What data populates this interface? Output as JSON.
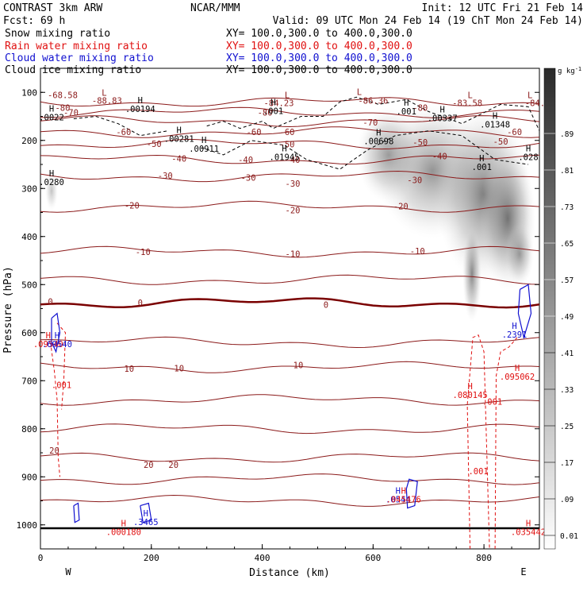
{
  "header": {
    "model": "CONTRAST  3km ARW",
    "center": "NCAR/MMM",
    "init": "Init: 12 UTC Fri 21 Feb 14",
    "fcst": "Fcst:   69 h",
    "valid": "Valid: 09 UTC Mon 24 Feb 14 (19 ChT Mon 24 Feb 14)"
  },
  "fields": [
    {
      "name": "Snow mixing ratio",
      "xy": "XY= 100.0,300.0 to 400.0,300.0",
      "color": "#000000"
    },
    {
      "name": "Rain water mixing ratio",
      "xy": "XY= 100.0,300.0 to 400.0,300.0",
      "color": "#e01010"
    },
    {
      "name": "Cloud water mixing ratio",
      "xy": "XY= 100.0,300.0 to 400.0,300.0",
      "color": "#1010d0"
    },
    {
      "name": "Cloud ice mixing ratio",
      "xy": "XY= 100.0,300.0 to 400.0,300.0",
      "color": "#000000"
    }
  ],
  "colors": {
    "temperature": "#8b1a1a",
    "freezing": "#7a0000",
    "rain": "#e01010",
    "cloud_water": "#1010d0",
    "ice": "#000000"
  },
  "chart_data": {
    "type": "contour",
    "xlabel": "Distance (km)",
    "ylabel": "Pressure (hPa)",
    "xlim": [
      0,
      900
    ],
    "ylim": [
      1050,
      50
    ],
    "xticks": [
      0,
      200,
      400,
      600,
      800
    ],
    "yticks": [
      100,
      200,
      300,
      400,
      500,
      600,
      700,
      800,
      900,
      1000
    ],
    "x_end_labels": [
      "W",
      "E"
    ],
    "colorbar": {
      "unit": "g kg",
      "unit_exp": "-1",
      "levels": [
        "0.01",
        ".09",
        ".17",
        ".25",
        ".33",
        ".41",
        ".49",
        ".57",
        ".65",
        ".73",
        ".81",
        ".89"
      ]
    },
    "temperature_labels": [
      {
        "x": 40,
        "p": 105,
        "text": "-68.58"
      },
      {
        "x": 120,
        "p": 117,
        "text": "-88.83"
      },
      {
        "x": 430,
        "p": 122,
        "text": "-84.23"
      },
      {
        "x": 600,
        "p": 117,
        "text": "-86.36"
      },
      {
        "x": 770,
        "p": 122,
        "text": "-83.58"
      },
      {
        "x": 892,
        "p": 122,
        "text": "-84."
      },
      {
        "x": 40,
        "p": 132,
        "text": "-80"
      },
      {
        "x": 405,
        "p": 142,
        "text": "-80"
      },
      {
        "x": 685,
        "p": 132,
        "text": "-80"
      },
      {
        "x": 55,
        "p": 142,
        "text": "-70"
      },
      {
        "x": 595,
        "p": 162,
        "text": "-70"
      },
      {
        "x": 150,
        "p": 182,
        "text": "-60"
      },
      {
        "x": 385,
        "p": 182,
        "text": "-60"
      },
      {
        "x": 445,
        "p": 182,
        "text": "-60"
      },
      {
        "x": 855,
        "p": 182,
        "text": "-60"
      },
      {
        "x": 205,
        "p": 207,
        "text": "-50"
      },
      {
        "x": 445,
        "p": 208,
        "text": "-50"
      },
      {
        "x": 685,
        "p": 204,
        "text": "-50"
      },
      {
        "x": 830,
        "p": 202,
        "text": "-50"
      },
      {
        "x": 250,
        "p": 238,
        "text": "-40"
      },
      {
        "x": 370,
        "p": 240,
        "text": "-40"
      },
      {
        "x": 455,
        "p": 240,
        "text": "-40"
      },
      {
        "x": 720,
        "p": 233,
        "text": "-40"
      },
      {
        "x": 225,
        "p": 273,
        "text": "-30"
      },
      {
        "x": 375,
        "p": 277,
        "text": "-30"
      },
      {
        "x": 455,
        "p": 290,
        "text": "-30"
      },
      {
        "x": 675,
        "p": 282,
        "text": "-30"
      },
      {
        "x": 165,
        "p": 335,
        "text": "-20"
      },
      {
        "x": 455,
        "p": 345,
        "text": "-20"
      },
      {
        "x": 650,
        "p": 337,
        "text": "-20"
      },
      {
        "x": 185,
        "p": 432,
        "text": "-10"
      },
      {
        "x": 455,
        "p": 436,
        "text": "-10"
      },
      {
        "x": 680,
        "p": 430,
        "text": "-10"
      },
      {
        "x": 18,
        "p": 535,
        "text": "0"
      },
      {
        "x": 180,
        "p": 538,
        "text": "0"
      },
      {
        "x": 515,
        "p": 542,
        "text": "0"
      },
      {
        "x": 160,
        "p": 675,
        "text": "10"
      },
      {
        "x": 250,
        "p": 674,
        "text": "10"
      },
      {
        "x": 465,
        "p": 667,
        "text": "10"
      },
      {
        "x": 25,
        "p": 845,
        "text": "20"
      },
      {
        "x": 195,
        "p": 875,
        "text": "20"
      },
      {
        "x": 240,
        "p": 875,
        "text": "20"
      }
    ],
    "extrema": [
      {
        "kind": "L",
        "x": 115,
        "p": 107,
        "color": "temperature"
      },
      {
        "kind": "L",
        "x": 445,
        "p": 112,
        "color": "temperature"
      },
      {
        "kind": "L",
        "x": 575,
        "p": 105,
        "color": "temperature"
      },
      {
        "kind": "L",
        "x": 775,
        "p": 112,
        "color": "temperature"
      },
      {
        "kind": "L",
        "x": 883,
        "p": 112,
        "color": "temperature"
      },
      {
        "kind": "H",
        "x": 180,
        "p": 123,
        "color": "ice",
        "value": ".00194"
      },
      {
        "kind": "H",
        "x": 20,
        "p": 140,
        "color": "ice",
        "value": ".0022"
      },
      {
        "kind": "H",
        "x": 420,
        "p": 127,
        "color": "ice",
        "value": ".001"
      },
      {
        "kind": "H",
        "x": 660,
        "p": 128,
        "color": "ice",
        "value": ".001"
      },
      {
        "kind": "H",
        "x": 725,
        "p": 142,
        "color": "ice",
        "value": ".00337"
      },
      {
        "kind": "H",
        "x": 820,
        "p": 155,
        "color": "ice",
        "value": ".01348"
      },
      {
        "kind": "H",
        "x": 250,
        "p": 185,
        "color": "ice",
        "value": ".00281"
      },
      {
        "kind": "H",
        "x": 295,
        "p": 205,
        "color": "ice",
        "value": ".00911"
      },
      {
        "kind": "H",
        "x": 610,
        "p": 190,
        "color": "ice",
        "value": ".00698"
      },
      {
        "kind": "H",
        "x": 440,
        "p": 223,
        "color": "ice",
        "value": ".01945"
      },
      {
        "kind": "H",
        "x": 880,
        "p": 223,
        "color": "ice",
        "value": ".028"
      },
      {
        "kind": "H",
        "x": 20,
        "p": 275,
        "color": "ice",
        "value": ".0280"
      },
      {
        "kind": "H",
        "x": 796,
        "p": 243,
        "color": "ice",
        "value": ".001"
      },
      {
        "kind": "H",
        "x": 14,
        "p": 612,
        "color": "rain",
        "value": ".09540"
      },
      {
        "kind": "H",
        "x": 30,
        "p": 612,
        "color": "cloud_water",
        "value": ".69540"
      },
      {
        "kind": "H",
        "x": 855,
        "p": 592,
        "color": "cloud_water",
        "value": ".2391"
      },
      {
        "kind": "H",
        "x": 860,
        "p": 680,
        "color": "rain",
        "value": ".095062"
      },
      {
        "kind": "H",
        "x": 775,
        "p": 718,
        "color": "rain",
        "value": ".080145"
      },
      {
        "kind": "H",
        "x": 645,
        "p": 935,
        "color": "cloud_water",
        "value": ".0544"
      },
      {
        "kind": "H",
        "x": 655,
        "p": 935,
        "color": "rain",
        "value": ".045476"
      },
      {
        "kind": "H",
        "x": 190,
        "p": 982,
        "color": "cloud_water",
        "value": ".3465"
      },
      {
        "kind": "H",
        "x": 150,
        "p": 1003,
        "color": "rain",
        "value": ".000180"
      },
      {
        "kind": "H",
        "x": 880,
        "p": 1003,
        "color": "rain",
        "value": ".035442"
      }
    ],
    "rain_labels": [
      {
        "x": 38,
        "p": 715,
        "text": ".001"
      },
      {
        "x": 790,
        "p": 895,
        "text": ".001"
      },
      {
        "x": 815,
        "p": 750,
        "text": ".001"
      }
    ]
  }
}
